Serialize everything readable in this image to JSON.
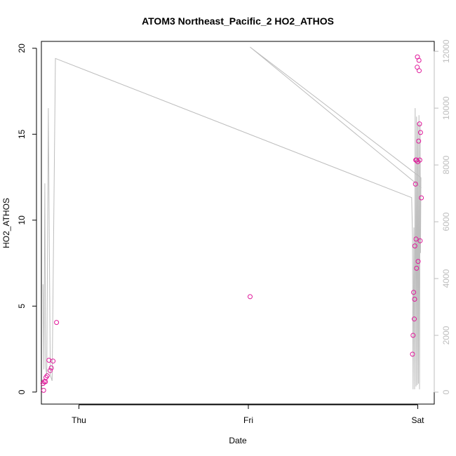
{
  "chart_data": {
    "type": "scatter",
    "title": "ATOM3 Northeast_Pacific_2 HO2_ATHOS",
    "xlabel": "Date",
    "ylabel": "HO2_ATHOS",
    "xlim": [
      "2016-08-03 18:41",
      "2016-08-06 02:20"
    ],
    "ylim": [
      -0.7,
      20.4
    ],
    "y2lim": [
      -420,
      12350
    ],
    "x_ticks": [
      {
        "label": "Thu",
        "t": "2016-08-04 00:00"
      },
      {
        "label": "Fri",
        "t": "2016-08-05 00:00"
      },
      {
        "label": "Sat",
        "t": "2016-08-06 00:00"
      }
    ],
    "y_ticks": [
      0,
      5,
      10,
      15,
      20
    ],
    "y2_ticks": [
      0,
      2000,
      4000,
      6000,
      8000,
      10000,
      12000
    ],
    "grid": false,
    "legend": "none",
    "colors": {
      "points": "#e0189a",
      "line": "#bdbdbd",
      "axis": "#000000",
      "y2_axis": "#bdbdbd"
    },
    "series": [
      {
        "axis": "left",
        "style": "points",
        "points": [
          {
            "x": "2016-08-03 18:55",
            "y": 0.5
          },
          {
            "x": "2016-08-03 19:00",
            "y": 0.1
          },
          {
            "x": "2016-08-03 19:05",
            "y": 0.6
          },
          {
            "x": "2016-08-03 19:15",
            "y": 0.6
          },
          {
            "x": "2016-08-03 19:20",
            "y": 0.85
          },
          {
            "x": "2016-08-03 19:30",
            "y": 0.95
          },
          {
            "x": "2016-08-03 19:45",
            "y": 1.85
          },
          {
            "x": "2016-08-03 19:55",
            "y": 1.25
          },
          {
            "x": "2016-08-03 20:05",
            "y": 1.4
          },
          {
            "x": "2016-08-03 20:20",
            "y": 1.8
          },
          {
            "x": "2016-08-03 20:50",
            "y": 4.05
          },
          {
            "x": "2016-08-05 00:15",
            "y": 5.55
          },
          {
            "x": "2016-08-05 23:15",
            "y": 2.2
          },
          {
            "x": "2016-08-05 23:20",
            "y": 3.3
          },
          {
            "x": "2016-08-05 23:25",
            "y": 5.8
          },
          {
            "x": "2016-08-05 23:30",
            "y": 4.25
          },
          {
            "x": "2016-08-05 23:33",
            "y": 5.4
          },
          {
            "x": "2016-08-05 23:35",
            "y": 8.5
          },
          {
            "x": "2016-08-05 23:40",
            "y": 12.1
          },
          {
            "x": "2016-08-05 23:43",
            "y": 13.5
          },
          {
            "x": "2016-08-05 23:45",
            "y": 8.9
          },
          {
            "x": "2016-08-05 23:48",
            "y": 13.5
          },
          {
            "x": "2016-08-05 23:50",
            "y": 7.2
          },
          {
            "x": "2016-08-05 23:55",
            "y": 18.9
          },
          {
            "x": "2016-08-05 23:57",
            "y": 19.5
          },
          {
            "x": "2016-08-06 00:00",
            "y": 13.4
          },
          {
            "x": "2016-08-06 00:03",
            "y": 7.6
          },
          {
            "x": "2016-08-06 00:07",
            "y": 14.6
          },
          {
            "x": "2016-08-06 00:10",
            "y": 19.3
          },
          {
            "x": "2016-08-06 00:12",
            "y": 18.7
          },
          {
            "x": "2016-08-06 00:15",
            "y": 15.6
          },
          {
            "x": "2016-08-06 00:17",
            "y": 13.5
          },
          {
            "x": "2016-08-06 00:20",
            "y": 8.8
          },
          {
            "x": "2016-08-06 00:23",
            "y": 15.1
          },
          {
            "x": "2016-08-06 00:30",
            "y": 11.3
          }
        ]
      },
      {
        "axis": "right",
        "style": "line",
        "points": [
          {
            "x": "2016-08-03 18:55",
            "y": 3800
          },
          {
            "x": "2016-08-03 19:02",
            "y": 800
          },
          {
            "x": "2016-08-03 19:10",
            "y": 7350
          },
          {
            "x": "2016-08-03 19:17",
            "y": 900
          },
          {
            "x": "2016-08-03 19:27",
            "y": 600
          },
          {
            "x": "2016-08-03 19:40",
            "y": 10000
          },
          {
            "x": "2016-08-03 19:57",
            "y": 600
          },
          {
            "x": "2016-08-03 20:12",
            "y": 400
          },
          {
            "x": "2016-08-03 20:40",
            "y": 11750
          },
          {
            "x": "2016-08-05 23:08",
            "y": 6850
          },
          {
            "x": "2016-08-05 23:15",
            "y": 5500
          },
          {
            "x": "2016-08-05 23:20",
            "y": 100
          },
          {
            "x": "2016-08-05 23:27",
            "y": 5800
          },
          {
            "x": "2016-08-05 23:33",
            "y": 100
          },
          {
            "x": "2016-08-05 23:38",
            "y": 10000
          },
          {
            "x": "2016-08-05 23:45",
            "y": 200
          },
          {
            "x": "2016-08-05 23:50",
            "y": 9700
          },
          {
            "x": "2016-08-05 23:55",
            "y": 250
          },
          {
            "x": "2016-08-06 00:00",
            "y": 9450
          },
          {
            "x": "2016-08-06 00:05",
            "y": 300
          },
          {
            "x": "2016-08-06 00:10",
            "y": 9750
          },
          {
            "x": "2016-08-06 00:15",
            "y": 100
          },
          {
            "x": "2016-08-06 00:20",
            "y": 9450
          },
          {
            "x": "2016-08-06 00:23",
            "y": 4900
          },
          {
            "x": "2016-08-06 00:27",
            "y": 7550
          },
          {
            "x": "2016-08-05 00:15",
            "y": 12150
          },
          {
            "x": "2016-08-06 00:30",
            "y": 7200
          }
        ]
      }
    ]
  }
}
